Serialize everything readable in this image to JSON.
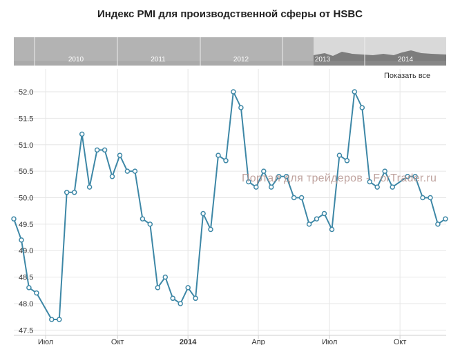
{
  "title": "Индекс PMI для производственной сферы от HSBC",
  "show_all_label": "Показать все",
  "watermark": "Портал для трейдеров - ForTrader.ru",
  "navigator": {
    "years": [
      "2010",
      "2011",
      "2012",
      "2013",
      "2014"
    ],
    "band_color": "#b3b3b3",
    "selection_color": "#d9d9d9",
    "line_color": "#7d7d7d"
  },
  "colors": {
    "series": "#3d87a6",
    "grid": "#e6e6e6",
    "axis": "#cccccc",
    "text": "#333333"
  },
  "chart_data": {
    "type": "line",
    "title": "Индекс PMI для производственной сферы от HSBC",
    "xlabel": "",
    "ylabel": "",
    "ylim": [
      47.4,
      52.3
    ],
    "yticks": [
      47.5,
      48.0,
      48.5,
      49.0,
      49.5,
      50.0,
      50.5,
      51.0,
      51.5,
      52.0
    ],
    "ytick_labels": [
      "47.5",
      "48.0",
      "48.5",
      "49.0",
      "49.5",
      "50.0",
      "50.5",
      "51.0",
      "51.5",
      "52.0"
    ],
    "xticks": [
      {
        "pos": 2.2,
        "label": "Июл",
        "bold": false
      },
      {
        "pos": 11.7,
        "label": "Окт",
        "bold": false
      },
      {
        "pos": 21.0,
        "label": "2014",
        "bold": true
      },
      {
        "pos": 30.3,
        "label": "Апр",
        "bold": false
      },
      {
        "pos": 39.7,
        "label": "Июл",
        "bold": false
      },
      {
        "pos": 49.0,
        "label": "Окт",
        "bold": false
      }
    ],
    "xlim": [
      -2.0,
      55.1
    ],
    "x": [
      -2,
      -1,
      0,
      1,
      3,
      4,
      5,
      6,
      7,
      8,
      9,
      10,
      11,
      12,
      13,
      14,
      15,
      16,
      17,
      18,
      19,
      20,
      21,
      22,
      23,
      24,
      25,
      26,
      27,
      28,
      29,
      30,
      31,
      32,
      33,
      34,
      35,
      36,
      37,
      38,
      39,
      40,
      41,
      42,
      43,
      44,
      45,
      46,
      47,
      48,
      50,
      51,
      52,
      53,
      54,
      55
    ],
    "series": [
      {
        "values": [
          49.6,
          49.2,
          48.3,
          48.2,
          47.7,
          47.7,
          50.1,
          50.1,
          51.2,
          50.2,
          50.9,
          50.9,
          50.4,
          50.8,
          50.5,
          50.5,
          49.6,
          49.5,
          48.3,
          48.5,
          48.1,
          48.0,
          48.3,
          48.1,
          49.7,
          49.4,
          50.8,
          50.7,
          52.0,
          51.7,
          50.3,
          50.2,
          50.5,
          50.2,
          50.4,
          50.4,
          50.0,
          50.0,
          49.5,
          49.6,
          49.7,
          49.4,
          50.8,
          50.7,
          52.0,
          51.7,
          50.3,
          50.2,
          50.5,
          50.2,
          50.4,
          50.4,
          50.0,
          50.0,
          49.5,
          49.6
        ]
      }
    ]
  }
}
